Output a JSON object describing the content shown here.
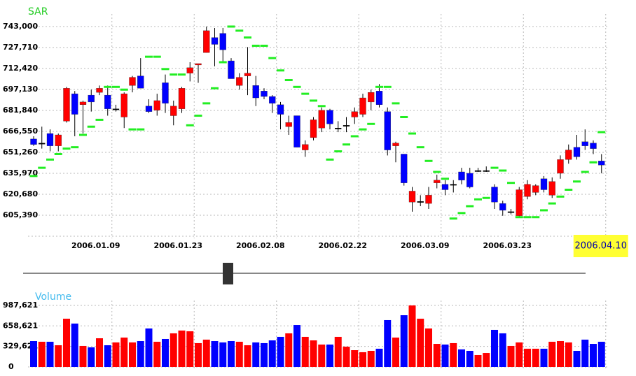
{
  "chart_data": [
    {
      "type": "candlestick",
      "title": "SAR",
      "title_color": "#22cc22",
      "categories": [
        null,
        null,
        null,
        null,
        null,
        null,
        null,
        null,
        null,
        "2006.01.09",
        null,
        null,
        null,
        null,
        null,
        null,
        null,
        null,
        null,
        "2006.01.23",
        null,
        null,
        null,
        null,
        null,
        null,
        null,
        null,
        null,
        "2006.02.08",
        null,
        null,
        null,
        null,
        null,
        null,
        null,
        null,
        null,
        "2006.02.22",
        null,
        null,
        null,
        null,
        null,
        null,
        null,
        null,
        null,
        "2006.03.09",
        null,
        null,
        null,
        null,
        null,
        null,
        null,
        null,
        null,
        "2006.03.23",
        null,
        null,
        null,
        null,
        null,
        null,
        null,
        null,
        null,
        "2006.04.10"
      ],
      "open": [
        661000,
        658000,
        665000,
        656000,
        674000,
        694000,
        686000,
        693000,
        695000,
        693000,
        683000,
        677000,
        700000,
        707000,
        685000,
        682000,
        702000,
        678000,
        683000,
        709000,
        715000,
        724000,
        735000,
        738000,
        718000,
        700000,
        707000,
        700000,
        696000,
        692000,
        686000,
        670000,
        678000,
        653000,
        662000,
        669000,
        682000,
        669000,
        671000,
        677000,
        679000,
        688000,
        696000,
        681000,
        656000,
        650000,
        615000,
        615500,
        614000,
        629000,
        628000,
        628000,
        637000,
        636000,
        638000,
        638000,
        626000,
        614000,
        608000,
        605000,
        619000,
        622000,
        632000,
        620000,
        636000,
        646000,
        655000,
        659000,
        658000,
        645000
      ],
      "high": [
        663000,
        670000,
        668000,
        665000,
        699000,
        696000,
        689000,
        697000,
        700000,
        700000,
        686000,
        695000,
        707000,
        720000,
        690000,
        694000,
        708000,
        689000,
        699000,
        717000,
        716000,
        743000,
        742000,
        742000,
        720000,
        709000,
        728000,
        707000,
        698000,
        693000,
        688000,
        678000,
        678000,
        660000,
        677000,
        684000,
        683000,
        674000,
        677000,
        684000,
        694000,
        697000,
        701000,
        684000,
        659000,
        650000,
        626000,
        620000,
        626000,
        635000,
        631000,
        631000,
        640000,
        640000,
        640000,
        641000,
        628000,
        616000,
        610000,
        626000,
        631000,
        628000,
        634000,
        633000,
        649000,
        657000,
        664000,
        668000,
        660000,
        650000
      ],
      "low": [
        656000,
        654000,
        652000,
        652000,
        673000,
        663000,
        665000,
        681000,
        693000,
        678000,
        681000,
        669000,
        695000,
        698000,
        680000,
        678000,
        680000,
        671000,
        680000,
        703000,
        702000,
        724000,
        714000,
        717000,
        705000,
        697000,
        693000,
        685000,
        690000,
        680000,
        668000,
        664000,
        655000,
        648000,
        660000,
        666000,
        668000,
        666000,
        666000,
        672000,
        677000,
        682000,
        684000,
        649000,
        644000,
        627000,
        608000,
        612000,
        610000,
        625000,
        620000,
        622000,
        628000,
        625000,
        637000,
        637000,
        610000,
        605000,
        606000,
        604000,
        617000,
        620000,
        622000,
        618000,
        632000,
        643000,
        646000,
        653000,
        650000,
        636000
      ],
      "close": [
        657000,
        658000,
        656000,
        664000,
        698000,
        679000,
        688000,
        688000,
        698000,
        683000,
        683000,
        694000,
        706000,
        698000,
        681000,
        689000,
        687000,
        685000,
        698000,
        713000,
        716000,
        740000,
        730000,
        726000,
        705000,
        706000,
        709000,
        691000,
        692000,
        687000,
        679000,
        673000,
        655000,
        657000,
        675000,
        682000,
        672000,
        669000,
        671000,
        681000,
        691000,
        695000,
        686000,
        653000,
        658000,
        629000,
        623000,
        615500,
        620000,
        631000,
        624000,
        628000,
        631000,
        626000,
        638000,
        638000,
        615000,
        609000,
        608000,
        624000,
        628000,
        627000,
        624000,
        630000,
        646000,
        653000,
        648000,
        656000,
        654000,
        642000
      ],
      "up_color": "#ff0000",
      "down_color": "#0000ff",
      "sar": {
        "color": "#22ee22",
        "values": [
          634000,
          640000,
          646000,
          650000,
          654000,
          655000,
          664000,
          670000,
          675000,
          699000,
          699000,
          697000,
          668000,
          668000,
          721000,
          721000,
          712000,
          708000,
          708000,
          671000,
          678000,
          687000,
          698000,
          717000,
          743000,
          740000,
          735000,
          729000,
          729000,
          720000,
          711000,
          704000,
          699000,
          694000,
          689000,
          685000,
          646000,
          652000,
          657000,
          663000,
          668000,
          672000,
          699000,
          699000,
          687000,
          677000,
          665000,
          655000,
          645000,
          637000,
          632000,
          603000,
          607000,
          612000,
          617000,
          618000,
          640000,
          638000,
          629000,
          604000,
          604000,
          604000,
          609000,
          614000,
          619000,
          624000,
          630000,
          637000,
          644000,
          666000
        ]
      },
      "ylim": [
        590100,
        752170
      ],
      "yticks": [
        {
          "value": 605390,
          "label": "605,390"
        },
        {
          "value": 620680,
          "label": "620,680"
        },
        {
          "value": 635970,
          "label": "635,970"
        },
        {
          "value": 651260,
          "label": "651,260"
        },
        {
          "value": 666550,
          "label": "666,550"
        },
        {
          "value": 681840,
          "label": "681,840"
        },
        {
          "value": 697130,
          "label": "697,130"
        },
        {
          "value": 712420,
          "label": "712,420"
        },
        {
          "value": 727710,
          "label": "727,710"
        },
        {
          "value": 743000,
          "label": "743,000"
        }
      ],
      "grid": true
    },
    {
      "type": "bar",
      "title": "Volume",
      "title_color": "#44bbee",
      "values": [
        415000,
        404000,
        404000,
        348000,
        774000,
        696000,
        337000,
        314000,
        460000,
        348000,
        393000,
        471000,
        393000,
        415000,
        617000,
        404000,
        449000,
        539000,
        584000,
        572000,
        382000,
        438000,
        415000,
        393000,
        415000,
        404000,
        348000,
        393000,
        382000,
        426000,
        483000,
        539000,
        673000,
        483000,
        426000,
        359000,
        359000,
        483000,
        325000,
        269000,
        236000,
        258000,
        292000,
        752000,
        471000,
        830000,
        987000,
        774000,
        617000,
        370000,
        359000,
        382000,
        281000,
        258000,
        191000,
        224000,
        595000,
        539000,
        337000,
        393000,
        292000,
        292000,
        292000,
        404000,
        415000,
        393000,
        258000,
        438000,
        370000,
        404000
      ],
      "ylim": [
        0,
        1066000
      ],
      "yticks": [
        0,
        {
          "value": 329621,
          "label": "329,621"
        },
        {
          "value": 658621,
          "label": "658,621"
        },
        {
          "value": 987621,
          "label": "987,621"
        }
      ],
      "grid": true
    }
  ]
}
